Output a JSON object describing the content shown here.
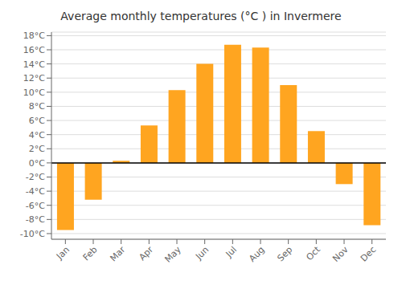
{
  "chart_data": {
    "type": "bar",
    "title": "Average monthly temperatures (°C ) in Invermere",
    "categories": [
      "Jan",
      "Feb",
      "Mar",
      "Apr",
      "May",
      "Jun",
      "Jul",
      "Aug",
      "Sep",
      "Oct",
      "Nov",
      "Dec"
    ],
    "values": [
      -9.5,
      -5.2,
      0.3,
      5.3,
      10.3,
      14.0,
      16.7,
      16.3,
      11.0,
      4.5,
      -3.0,
      -8.8
    ],
    "color": "#FFA520",
    "ylim": [
      -10.8,
      18.5
    ],
    "yticks": [
      {
        "value": -10,
        "label": "-10°C"
      },
      {
        "value": -8,
        "label": "-8°C"
      },
      {
        "value": -6,
        "label": "-6°C"
      },
      {
        "value": -4,
        "label": "-4°C"
      },
      {
        "value": -2,
        "label": "-2°C"
      },
      {
        "value": 0,
        "label": "0°C"
      },
      {
        "value": 2,
        "label": "2°C"
      },
      {
        "value": 4,
        "label": "4°C"
      },
      {
        "value": 6,
        "label": "6°C"
      },
      {
        "value": 8,
        "label": "8°C"
      },
      {
        "value": 10,
        "label": "10°C"
      },
      {
        "value": 12,
        "label": "12°C"
      },
      {
        "value": 14,
        "label": "14°C"
      },
      {
        "value": 16,
        "label": "16°C"
      },
      {
        "value": 18,
        "label": "18°C"
      }
    ],
    "grid": true
  }
}
